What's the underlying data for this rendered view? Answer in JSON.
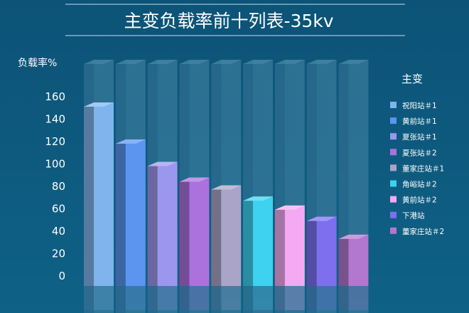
{
  "chart_data": {
    "type": "bar",
    "title": "主变负载率前十列表-35kv",
    "ylabel": "负载率%",
    "legend_title": "主变",
    "legend_position": "right",
    "ylim": [
      0,
      160
    ],
    "yticks": [
      0,
      20,
      40,
      60,
      80,
      100,
      120,
      140,
      160
    ],
    "grid": false,
    "categories": [
      "祝阳站＃1",
      "黄前站＃1",
      "夏张站＃1",
      "夏张站＃2",
      "董家庄站＃1",
      "角峪站＃2",
      "黄前站＃2",
      "下港站",
      "董家庄站＃2"
    ],
    "values": [
      160,
      127,
      107,
      93,
      86,
      76,
      68,
      58,
      42
    ],
    "colors": [
      "#7fb4ec",
      "#5b95f0",
      "#9c97ee",
      "#ab71dd",
      "#aaa4c8",
      "#3ed1f0",
      "#f4a9f3",
      "#7d70ef",
      "#b277cf"
    ]
  }
}
